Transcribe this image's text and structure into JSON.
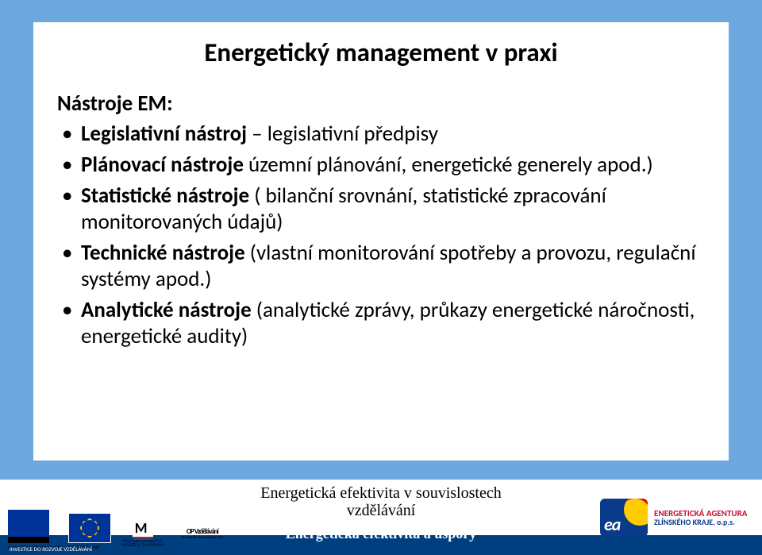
{
  "slide": {
    "bg_color": "#6ea6de",
    "content_bg": "#ffffff",
    "footer_bar_color": "#003f7f"
  },
  "title": "Energetický management v praxi",
  "subhead": "Nástroje EM:",
  "bullets": [
    {
      "bold": "Legislativní nástroj",
      "rest": " – legislativní předpisy"
    },
    {
      "bold": "Plánovací nástroje",
      "rest": " územní plánování, energetické generely apod.)"
    },
    {
      "bold": "Statistické nástroje",
      "rest": " ( bilanční srovnání, statistické zpracování monitorovaných údajů)"
    },
    {
      "bold": "Technické nástroje",
      "rest": " (vlastní monitorování spotřeby a provozu, regulační systémy apod.)"
    },
    {
      "bold": "Analytické nástroje",
      "rest": " (analytické zprávy, průkazy energetické náročnosti, energetické audity)"
    }
  ],
  "footer": {
    "line1": "Energetická efektivita v souvislostech",
    "line2": "vzdělávání",
    "line3": "Energetická efektivita a úspory"
  },
  "logos_left": {
    "esf_lines": "evropský\nsociální\nfond v ČR",
    "eu_lines": "EVROPSKÁ UNIE",
    "msmt_lines": "MINISTERSTVO ŠKOLSTVÍ,\nMLÁDEŽE A TĚLOVÝCHOVY",
    "opvk_label": "OP Vzdělávání",
    "opvk_sub": "pro konkurenceschopnost",
    "caption": "INVESTICE DO ROZVOJE VZDĚLÁVÁNÍ"
  },
  "logo_right": {
    "badge": "ea",
    "line1": "ENERGETICKÁ AGENTURA",
    "line2": "ZLÍNSKÉHO KRAJE, o.p.s."
  }
}
